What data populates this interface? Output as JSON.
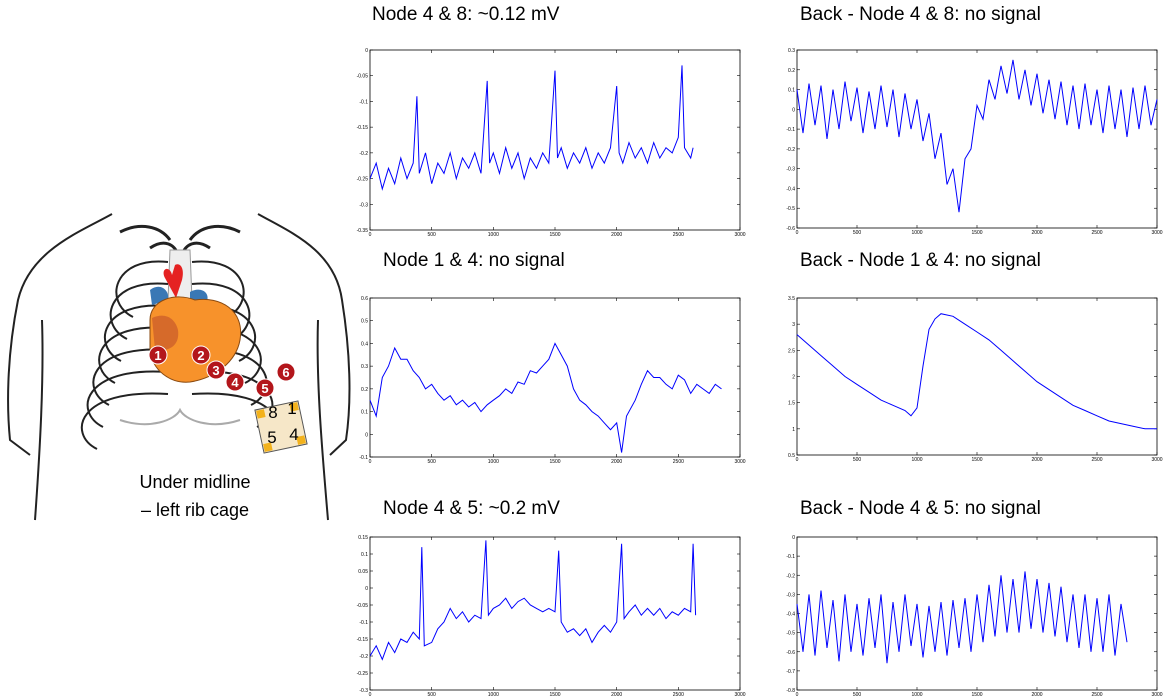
{
  "chart_data": [
    {
      "type": "line",
      "title": "Node 4 & 8: ~0.12 mV",
      "color": "#0000ff",
      "xlim": [
        0,
        3000
      ],
      "ylim": [
        -0.35,
        0
      ],
      "xticks": [
        0,
        500,
        1000,
        1500,
        2000,
        2500,
        3000
      ],
      "yticks": [
        0,
        -0.05,
        -0.1,
        -0.15,
        -0.2,
        -0.25,
        -0.3,
        -0.35
      ],
      "x": [
        0,
        50,
        100,
        150,
        200,
        250,
        300,
        350,
        380,
        400,
        450,
        500,
        550,
        600,
        650,
        700,
        750,
        800,
        850,
        900,
        950,
        970,
        1000,
        1050,
        1100,
        1150,
        1200,
        1250,
        1300,
        1350,
        1400,
        1450,
        1500,
        1520,
        1550,
        1600,
        1650,
        1700,
        1750,
        1800,
        1850,
        1900,
        1950,
        2000,
        2020,
        2050,
        2100,
        2150,
        2200,
        2250,
        2300,
        2350,
        2400,
        2450,
        2500,
        2530,
        2550,
        2600,
        2620
      ],
      "values": [
        -0.25,
        -0.22,
        -0.27,
        -0.23,
        -0.26,
        -0.21,
        -0.25,
        -0.22,
        -0.09,
        -0.24,
        -0.2,
        -0.26,
        -0.22,
        -0.24,
        -0.2,
        -0.25,
        -0.21,
        -0.23,
        -0.2,
        -0.24,
        -0.06,
        -0.22,
        -0.2,
        -0.24,
        -0.19,
        -0.23,
        -0.2,
        -0.25,
        -0.21,
        -0.23,
        -0.2,
        -0.22,
        -0.04,
        -0.21,
        -0.19,
        -0.23,
        -0.2,
        -0.22,
        -0.19,
        -0.23,
        -0.2,
        -0.22,
        -0.19,
        -0.07,
        -0.2,
        -0.22,
        -0.18,
        -0.21,
        -0.19,
        -0.22,
        -0.18,
        -0.21,
        -0.19,
        -0.2,
        -0.17,
        -0.03,
        -0.19,
        -0.21,
        -0.19
      ]
    },
    {
      "type": "line",
      "title": "Back - Node 4 & 8: no signal",
      "color": "#0000ff",
      "xlim": [
        0,
        3000
      ],
      "ylim": [
        -0.6,
        0.3
      ],
      "xticks": [
        0,
        500,
        1000,
        1500,
        2000,
        2500,
        3000
      ],
      "yticks": [
        0.3,
        0.2,
        0.1,
        0,
        -0.1,
        -0.2,
        -0.3,
        -0.4,
        -0.5,
        -0.6
      ],
      "x": [
        0,
        50,
        100,
        150,
        200,
        250,
        300,
        350,
        400,
        450,
        500,
        550,
        600,
        650,
        700,
        750,
        800,
        850,
        900,
        950,
        1000,
        1050,
        1100,
        1150,
        1200,
        1250,
        1300,
        1350,
        1400,
        1450,
        1500,
        1550,
        1600,
        1650,
        1700,
        1750,
        1800,
        1850,
        1900,
        1950,
        2000,
        2050,
        2100,
        2150,
        2200,
        2250,
        2300,
        2350,
        2400,
        2450,
        2500,
        2550,
        2600,
        2650,
        2700,
        2750,
        2800,
        2850,
        2900,
        2950,
        3000
      ],
      "values": [
        0.1,
        -0.12,
        0.13,
        -0.08,
        0.12,
        -0.15,
        0.1,
        -0.1,
        0.14,
        -0.06,
        0.11,
        -0.12,
        0.09,
        -0.1,
        0.12,
        -0.09,
        0.1,
        -0.14,
        0.08,
        -0.1,
        0.05,
        -0.16,
        -0.02,
        -0.25,
        -0.12,
        -0.38,
        -0.3,
        -0.52,
        -0.25,
        -0.2,
        0.02,
        -0.05,
        0.15,
        0.05,
        0.22,
        0.08,
        0.25,
        0.05,
        0.2,
        0.02,
        0.18,
        -0.02,
        0.15,
        -0.05,
        0.14,
        -0.08,
        0.12,
        -0.1,
        0.13,
        -0.08,
        0.1,
        -0.12,
        0.12,
        -0.1,
        0.1,
        -0.14,
        0.11,
        -0.1,
        0.12,
        -0.08,
        0.05
      ]
    },
    {
      "type": "line",
      "title": "Node 1 & 4:  no signal",
      "color": "#0000ff",
      "xlim": [
        0,
        3000
      ],
      "ylim": [
        -0.1,
        0.6
      ],
      "xticks": [
        0,
        500,
        1000,
        1500,
        2000,
        2500,
        3000
      ],
      "yticks": [
        0.6,
        0.5,
        0.4,
        0.3,
        0.2,
        0.1,
        0,
        -0.1
      ],
      "x": [
        0,
        50,
        100,
        150,
        200,
        250,
        300,
        350,
        400,
        450,
        500,
        550,
        600,
        650,
        700,
        750,
        800,
        850,
        900,
        950,
        1000,
        1050,
        1100,
        1150,
        1200,
        1250,
        1300,
        1350,
        1400,
        1450,
        1500,
        1550,
        1600,
        1650,
        1700,
        1750,
        1800,
        1850,
        1900,
        1950,
        2000,
        2040,
        2080,
        2150,
        2200,
        2250,
        2300,
        2350,
        2400,
        2450,
        2500,
        2550,
        2600,
        2650,
        2700,
        2750,
        2800,
        2850
      ],
      "values": [
        0.15,
        0.08,
        0.25,
        0.3,
        0.38,
        0.33,
        0.33,
        0.28,
        0.25,
        0.2,
        0.22,
        0.18,
        0.15,
        0.17,
        0.13,
        0.15,
        0.12,
        0.14,
        0.1,
        0.13,
        0.15,
        0.17,
        0.2,
        0.18,
        0.23,
        0.22,
        0.28,
        0.27,
        0.3,
        0.33,
        0.4,
        0.35,
        0.3,
        0.2,
        0.15,
        0.13,
        0.1,
        0.08,
        0.05,
        0.02,
        0.05,
        -0.08,
        0.08,
        0.15,
        0.22,
        0.28,
        0.25,
        0.25,
        0.22,
        0.2,
        0.26,
        0.24,
        0.18,
        0.22,
        0.2,
        0.18,
        0.22,
        0.2
      ]
    },
    {
      "type": "line",
      "title": "Back - Node 1 & 4:  no signal",
      "color": "#0000ff",
      "xlim": [
        0,
        3000
      ],
      "ylim": [
        0.5,
        3.5
      ],
      "xticks": [
        0,
        500,
        1000,
        1500,
        2000,
        2500,
        3000
      ],
      "yticks": [
        3.5,
        3,
        2.5,
        2,
        1.5,
        1,
        0.5
      ],
      "x": [
        0,
        100,
        200,
        300,
        400,
        500,
        600,
        700,
        800,
        900,
        950,
        1000,
        1050,
        1100,
        1150,
        1200,
        1300,
        1400,
        1500,
        1600,
        1700,
        1800,
        1900,
        2000,
        2100,
        2200,
        2300,
        2400,
        2500,
        2600,
        2700,
        2800,
        2900,
        3000
      ],
      "values": [
        2.8,
        2.6,
        2.4,
        2.2,
        2,
        1.85,
        1.7,
        1.55,
        1.45,
        1.35,
        1.25,
        1.4,
        2.2,
        2.9,
        3.1,
        3.2,
        3.15,
        3,
        2.85,
        2.7,
        2.5,
        2.3,
        2.1,
        1.9,
        1.75,
        1.6,
        1.45,
        1.35,
        1.25,
        1.15,
        1.1,
        1.05,
        1,
        1
      ]
    },
    {
      "type": "line",
      "title": "Node 4 & 5: ~0.2 mV",
      "color": "#0000ff",
      "xlim": [
        0,
        3000
      ],
      "ylim": [
        -0.3,
        0.15
      ],
      "xticks": [
        0,
        500,
        1000,
        1500,
        2000,
        2500,
        3000
      ],
      "yticks": [
        0.15,
        0.1,
        0.05,
        0,
        -0.05,
        -0.1,
        -0.15,
        -0.2,
        -0.25,
        -0.3
      ],
      "x": [
        0,
        50,
        100,
        150,
        200,
        250,
        300,
        350,
        400,
        420,
        440,
        500,
        550,
        600,
        650,
        700,
        750,
        800,
        850,
        900,
        940,
        960,
        1000,
        1050,
        1100,
        1150,
        1200,
        1250,
        1300,
        1350,
        1400,
        1450,
        1500,
        1530,
        1550,
        1600,
        1650,
        1700,
        1750,
        1800,
        1850,
        1900,
        1950,
        2000,
        2040,
        2060,
        2100,
        2150,
        2200,
        2250,
        2300,
        2350,
        2400,
        2450,
        2500,
        2550,
        2600,
        2620,
        2640
      ],
      "values": [
        -0.2,
        -0.17,
        -0.21,
        -0.16,
        -0.19,
        -0.15,
        -0.16,
        -0.13,
        -0.15,
        0.12,
        -0.17,
        -0.16,
        -0.12,
        -0.1,
        -0.06,
        -0.09,
        -0.07,
        -0.1,
        -0.08,
        -0.09,
        0.14,
        -0.08,
        -0.06,
        -0.05,
        -0.03,
        -0.06,
        -0.04,
        -0.03,
        -0.05,
        -0.06,
        -0.07,
        -0.06,
        -0.07,
        0.11,
        -0.1,
        -0.13,
        -0.12,
        -0.14,
        -0.12,
        -0.16,
        -0.13,
        -0.11,
        -0.13,
        -0.1,
        0.13,
        -0.09,
        -0.07,
        -0.05,
        -0.08,
        -0.06,
        -0.08,
        -0.06,
        -0.09,
        -0.07,
        -0.08,
        -0.06,
        -0.07,
        0.13,
        -0.08
      ]
    },
    {
      "type": "line",
      "title": "Back - Node 4 & 5: no signal",
      "color": "#0000ff",
      "xlim": [
        0,
        3000
      ],
      "ylim": [
        -0.8,
        0
      ],
      "xticks": [
        0,
        500,
        1000,
        1500,
        2000,
        2500,
        3000
      ],
      "yticks": [
        0,
        -0.1,
        -0.2,
        -0.3,
        -0.4,
        -0.5,
        -0.6,
        -0.7,
        -0.8
      ],
      "x": [
        0,
        50,
        100,
        150,
        200,
        250,
        300,
        350,
        400,
        450,
        500,
        550,
        600,
        650,
        700,
        750,
        800,
        850,
        900,
        950,
        1000,
        1050,
        1100,
        1150,
        1200,
        1250,
        1300,
        1350,
        1400,
        1450,
        1500,
        1550,
        1600,
        1650,
        1700,
        1750,
        1800,
        1850,
        1900,
        1950,
        2000,
        2050,
        2100,
        2150,
        2200,
        2250,
        2300,
        2350,
        2400,
        2450,
        2500,
        2550,
        2600,
        2650,
        2700,
        2750
      ],
      "values": [
        -0.35,
        -0.6,
        -0.3,
        -0.62,
        -0.28,
        -0.58,
        -0.33,
        -0.65,
        -0.3,
        -0.6,
        -0.35,
        -0.62,
        -0.32,
        -0.58,
        -0.3,
        -0.66,
        -0.34,
        -0.6,
        -0.3,
        -0.57,
        -0.35,
        -0.63,
        -0.36,
        -0.6,
        -0.34,
        -0.62,
        -0.33,
        -0.58,
        -0.32,
        -0.6,
        -0.3,
        -0.55,
        -0.25,
        -0.52,
        -0.2,
        -0.5,
        -0.22,
        -0.5,
        -0.18,
        -0.48,
        -0.22,
        -0.5,
        -0.24,
        -0.52,
        -0.26,
        -0.55,
        -0.3,
        -0.58,
        -0.3,
        -0.6,
        -0.32,
        -0.6,
        -0.3,
        -0.62,
        -0.35,
        -0.55
      ]
    }
  ],
  "diagram": {
    "nodes": [
      "1",
      "2",
      "3",
      "4",
      "5",
      "6"
    ],
    "patch_labels": [
      "8",
      "1",
      "5",
      "4"
    ],
    "caption": [
      "Under midline",
      "– left rib cage"
    ]
  }
}
